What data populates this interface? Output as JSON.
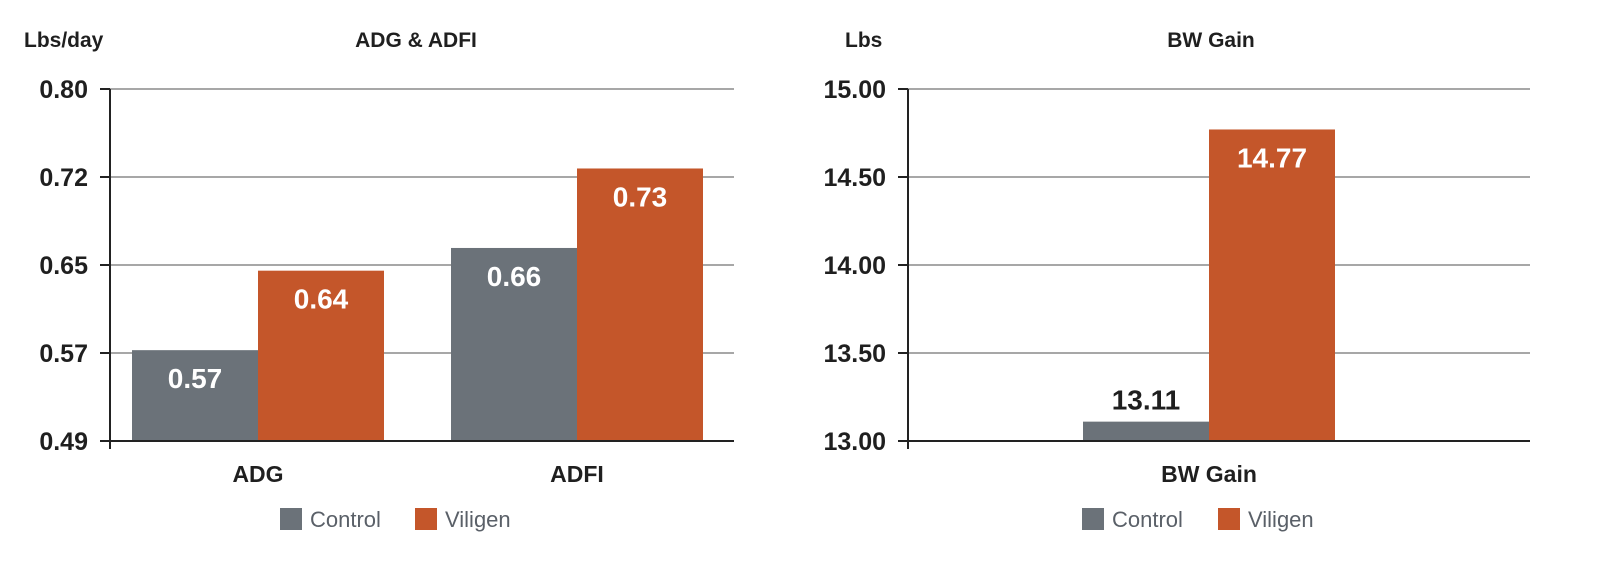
{
  "colors": {
    "control": "#6b7279",
    "viligen": "#c4562a",
    "grid": "#8a8a8a",
    "axis": "#222222",
    "label_dark": "#1f1f1f",
    "label_light": "#ffffff"
  },
  "chart_data": [
    {
      "type": "bar",
      "title": "ADG & ADFI",
      "ylabel": "Lbs/day",
      "xlabel": "",
      "categories": [
        "ADG",
        "ADFI"
      ],
      "yticks": [
        "0.49",
        "0.57",
        "0.65",
        "0.72",
        "0.80"
      ],
      "ylim": [
        0.49,
        0.8
      ],
      "grid": true,
      "legend_position": "bottom",
      "series": [
        {
          "name": "Control",
          "color_key": "control",
          "values": [
            0.57,
            0.66
          ],
          "labels": [
            "0.57",
            "0.66"
          ]
        },
        {
          "name": "Viligen",
          "color_key": "viligen",
          "values": [
            0.64,
            0.73
          ],
          "labels": [
            "0.64",
            "0.73"
          ]
        }
      ]
    },
    {
      "type": "bar",
      "title": "BW Gain",
      "ylabel": "Lbs",
      "xlabel": "",
      "categories": [
        "BW Gain"
      ],
      "yticks": [
        "13.00",
        "13.50",
        "14.00",
        "14.50",
        "15.00"
      ],
      "ylim": [
        13.0,
        15.0
      ],
      "grid": true,
      "legend_position": "bottom",
      "series": [
        {
          "name": "Control",
          "color_key": "control",
          "values": [
            13.11
          ],
          "labels": [
            "13.11"
          ]
        },
        {
          "name": "Viligen",
          "color_key": "viligen",
          "values": [
            14.77
          ],
          "labels": [
            "14.77"
          ]
        }
      ]
    }
  ]
}
